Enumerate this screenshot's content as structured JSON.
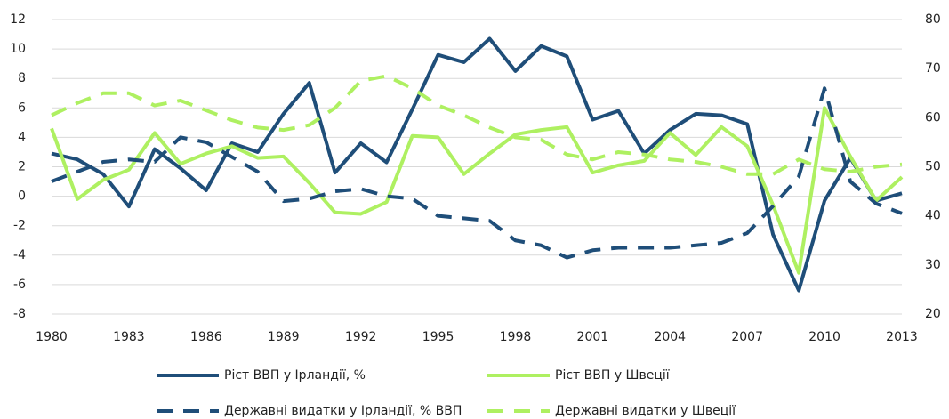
{
  "chart_data": {
    "type": "line",
    "x": [
      1980,
      1981,
      1982,
      1983,
      1984,
      1985,
      1986,
      1987,
      1988,
      1989,
      1990,
      1991,
      1992,
      1993,
      1994,
      1995,
      1996,
      1997,
      1998,
      1999,
      2000,
      2001,
      2002,
      2003,
      2004,
      2005,
      2006,
      2007,
      2008,
      2009,
      2010,
      2011,
      2012,
      2013
    ],
    "xlim": [
      1980,
      2013
    ],
    "xticks": [
      1980,
      1983,
      1986,
      1989,
      1992,
      1995,
      1998,
      2001,
      2004,
      2007,
      2010,
      2013
    ],
    "ylim": [
      -8,
      12
    ],
    "yticks": [
      -8,
      -6,
      -4,
      -2,
      0,
      2,
      4,
      6,
      8,
      10,
      12
    ],
    "y2lim": [
      20,
      80
    ],
    "y2ticks": [
      20,
      30,
      40,
      50,
      60,
      70,
      80
    ],
    "grid": true,
    "legend": "bottom",
    "series": [
      {
        "name": "Ріст ВВП у Ірландії, %",
        "color": "#1f4e79",
        "dash": false,
        "values": [
          2.9,
          2.5,
          1.5,
          -0.7,
          3.2,
          1.9,
          0.4,
          3.6,
          3.0,
          5.6,
          7.7,
          1.6,
          3.6,
          2.3,
          5.9,
          9.6,
          9.1,
          10.7,
          8.5,
          10.2,
          9.5,
          5.2,
          5.8,
          2.9,
          4.5,
          5.6,
          5.5,
          4.9,
          -2.6,
          -6.4,
          -0.3,
          2.6,
          -0.3,
          0.2
        ]
      },
      {
        "name": "Ріст ВВП у Швеції",
        "color": "#aef061",
        "dash": false,
        "values": [
          4.6,
          -0.2,
          1.1,
          1.8,
          4.3,
          2.2,
          2.9,
          3.4,
          2.6,
          2.7,
          0.9,
          -1.1,
          -1.2,
          -0.4,
          4.1,
          4.0,
          1.5,
          2.9,
          4.2,
          4.5,
          4.7,
          1.6,
          2.1,
          2.4,
          4.3,
          2.8,
          4.7,
          3.4,
          -0.6,
          -5.2,
          6.0,
          2.7,
          -0.3,
          1.3
        ]
      },
      {
        "name": "Державні видатки у Ірландії, % ВВП",
        "color": "#1f4e79",
        "dash": true,
        "axis": "y2",
        "values": [
          47,
          49,
          51,
          51.5,
          51,
          56,
          55,
          52,
          49,
          43,
          43.5,
          45,
          45.5,
          44,
          43.5,
          40,
          39.5,
          39,
          35,
          34,
          31.5,
          33,
          33.5,
          33.5,
          33.5,
          34,
          34.5,
          36.5,
          42,
          48,
          66,
          47,
          42.5,
          40.5
        ]
      },
      {
        "name": "Державні видатки у Швеції",
        "color": "#aef061",
        "dash": true,
        "axis": "y2",
        "values": [
          60.5,
          63,
          65,
          65,
          62.5,
          63.5,
          61.5,
          59.5,
          58,
          57.5,
          58.5,
          62,
          67.5,
          68.5,
          66,
          62.5,
          60.5,
          58,
          56,
          55.5,
          52.5,
          51.5,
          53,
          52.5,
          51.5,
          51,
          50,
          48.5,
          48.5,
          51.5,
          49.5,
          49,
          50,
          50.5
        ]
      }
    ]
  }
}
